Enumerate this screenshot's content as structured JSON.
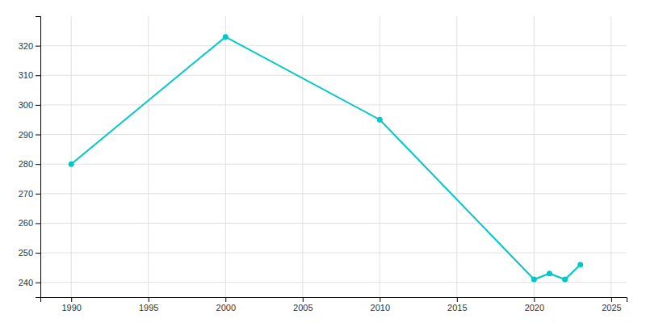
{
  "chart_data": {
    "type": "line",
    "x": [
      1990,
      2000,
      2010,
      2020,
      2021,
      2022,
      2023
    ],
    "values": [
      280,
      323,
      295,
      241,
      243,
      241,
      246
    ],
    "color": "#00C8C8",
    "marker": "circle",
    "xlim": [
      1988,
      2026
    ],
    "ylim": [
      235,
      330
    ],
    "xticks": [
      1990,
      1995,
      2000,
      2005,
      2010,
      2015,
      2020,
      2025
    ],
    "yticks": [
      240,
      250,
      260,
      270,
      280,
      290,
      300,
      310,
      320
    ],
    "grid": true
  }
}
